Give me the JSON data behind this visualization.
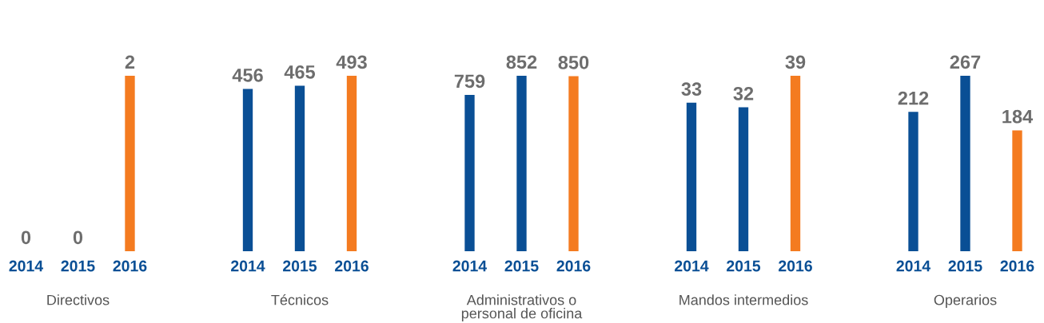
{
  "chart_data": [
    {
      "type": "bar",
      "categories": [
        "2014",
        "2015",
        "2016"
      ],
      "values": [
        0,
        0,
        2
      ],
      "colors": [
        "#0a4f95",
        "#0a4f95",
        "#f47b20"
      ],
      "xlabel": "Directivos",
      "data_labels": true,
      "tick_labels": "x"
    },
    {
      "type": "bar",
      "categories": [
        "2014",
        "2015",
        "2016"
      ],
      "values": [
        456,
        465,
        493
      ],
      "colors": [
        "#0a4f95",
        "#0a4f95",
        "#f47b20"
      ],
      "xlabel": "Técnicos",
      "data_labels": true,
      "tick_labels": "x"
    },
    {
      "type": "bar",
      "categories": [
        "2014",
        "2015",
        "2016"
      ],
      "values": [
        759,
        852,
        850
      ],
      "colors": [
        "#0a4f95",
        "#0a4f95",
        "#f47b20"
      ],
      "xlabel": "Administrativos o\npersonal de oficina",
      "data_labels": true,
      "tick_labels": "x"
    },
    {
      "type": "bar",
      "categories": [
        "2014",
        "2015",
        "2016"
      ],
      "values": [
        33,
        32,
        39
      ],
      "colors": [
        "#0a4f95",
        "#0a4f95",
        "#f47b20"
      ],
      "xlabel": "Mandos intermedios",
      "data_labels": true,
      "tick_labels": "x"
    },
    {
      "type": "bar",
      "categories": [
        "2014",
        "2015",
        "2016"
      ],
      "values": [
        212,
        267,
        184
      ],
      "colors": [
        "#0a4f95",
        "#0a4f95",
        "#f47b20"
      ],
      "xlabel": "Operarios",
      "data_labels": true,
      "tick_labels": "x"
    }
  ]
}
